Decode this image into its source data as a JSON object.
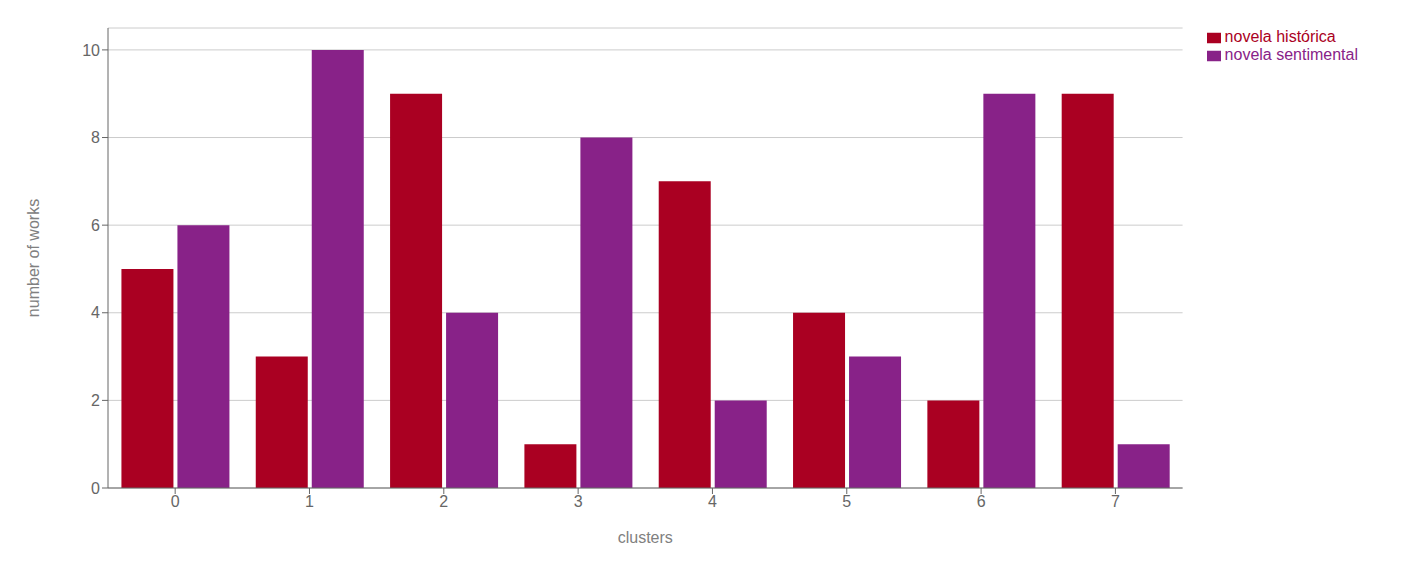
{
  "chart_data": {
    "type": "bar",
    "xlabel": "clusters",
    "ylabel": "number of works",
    "categories": [
      "0",
      "1",
      "2",
      "3",
      "4",
      "5",
      "6",
      "7"
    ],
    "series": [
      {
        "name": "novela histórica",
        "color": "#aa0022",
        "values": [
          5,
          3,
          9,
          1,
          7,
          4,
          2,
          9
        ]
      },
      {
        "name": "novela sentimental",
        "color": "#882288",
        "values": [
          6,
          10,
          4,
          8,
          2,
          3,
          9,
          1
        ]
      }
    ],
    "ylim": [
      0,
      10.5
    ],
    "yticks": [
      0,
      2,
      4,
      6,
      8,
      10
    ],
    "grid": true,
    "legend": "right"
  }
}
